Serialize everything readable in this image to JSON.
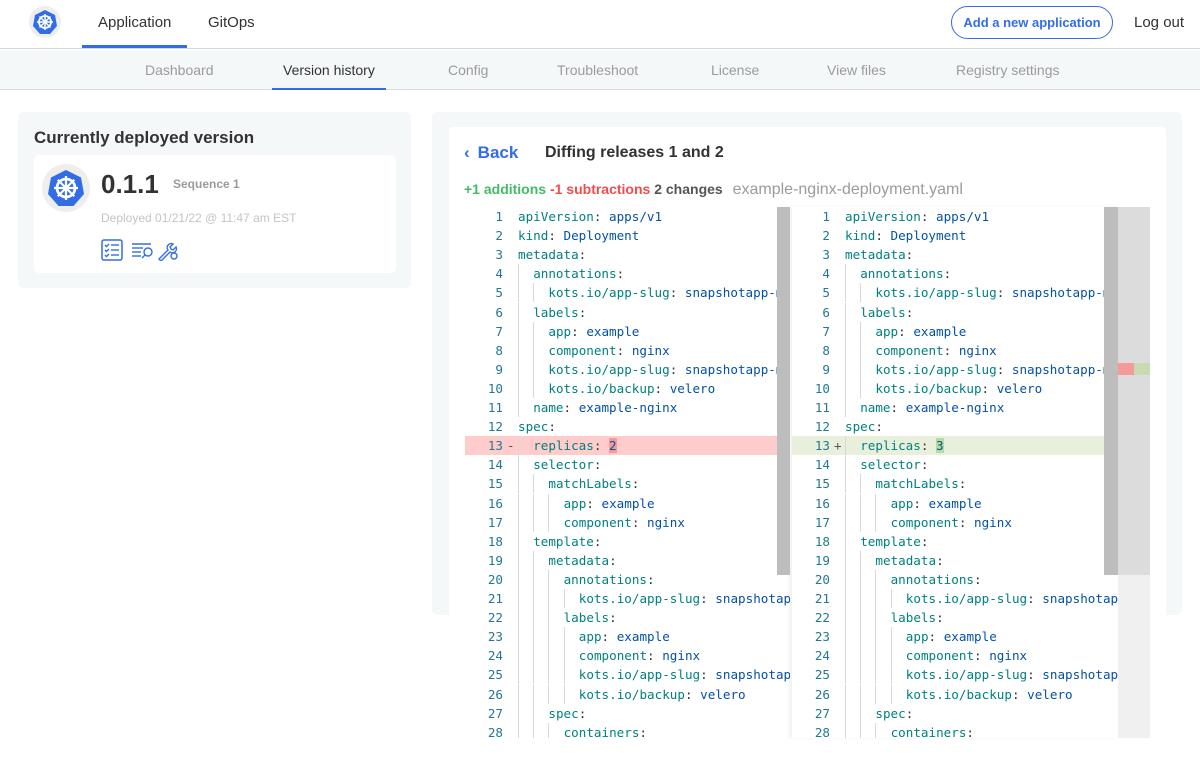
{
  "topbar": {
    "tabs": [
      "Application",
      "GitOps"
    ],
    "add_button": "Add a new application",
    "logout": "Log out"
  },
  "subnav": {
    "tabs": [
      "Dashboard",
      "Version history",
      "Config",
      "Troubleshoot",
      "License",
      "View files",
      "Registry settings"
    ],
    "active": "Version history"
  },
  "deployed": {
    "title": "Currently deployed version",
    "version": "0.1.1",
    "sequence": "Sequence 1",
    "deployed_at": "Deployed 01/21/22 @ 11:47 am EST",
    "icons": [
      "checklist-icon",
      "log-search-icon",
      "wrench-gear-icon"
    ]
  },
  "diff": {
    "back": "Back",
    "title": "Diffing releases 1 and 2",
    "additions": "+1 additions",
    "subtractions": "-1 subtractions",
    "changes": "2 changes",
    "file": "example-nginx-deployment.yaml",
    "colors": {
      "add": "#44bb66",
      "del": "#f14c4c",
      "accent": "#326de6"
    },
    "lines": [
      [
        0,
        "apiVersion",
        "apps/v1"
      ],
      [
        0,
        "kind",
        "Deployment"
      ],
      [
        0,
        "metadata",
        ""
      ],
      [
        1,
        "annotations",
        ""
      ],
      [
        2,
        "kots.io/app-slug",
        "snapshotapp-mu"
      ],
      [
        1,
        "labels",
        ""
      ],
      [
        2,
        "app",
        "example"
      ],
      [
        2,
        "component",
        "nginx"
      ],
      [
        2,
        "kots.io/app-slug",
        "snapshotapp-mu"
      ],
      [
        2,
        "kots.io/backup",
        "velero"
      ],
      [
        1,
        "name",
        "example-nginx"
      ],
      [
        0,
        "spec",
        ""
      ],
      [
        1,
        "replicas",
        "2"
      ],
      [
        1,
        "selector",
        ""
      ],
      [
        2,
        "matchLabels",
        ""
      ],
      [
        3,
        "app",
        "example"
      ],
      [
        3,
        "component",
        "nginx"
      ],
      [
        1,
        "template",
        ""
      ],
      [
        2,
        "metadata",
        ""
      ],
      [
        3,
        "annotations",
        ""
      ],
      [
        4,
        "kots.io/app-slug",
        "snapshotap"
      ],
      [
        3,
        "labels",
        ""
      ],
      [
        4,
        "app",
        "example"
      ],
      [
        4,
        "component",
        "nginx"
      ],
      [
        4,
        "kots.io/app-slug",
        "snapshotap"
      ],
      [
        4,
        "kots.io/backup",
        "velero"
      ],
      [
        2,
        "spec",
        ""
      ],
      [
        3,
        "containers",
        ""
      ]
    ],
    "changed_line": 13,
    "old_value": "2",
    "new_value": "3"
  }
}
